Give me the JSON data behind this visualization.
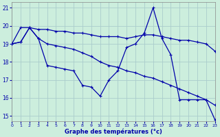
{
  "xlabel": "Graphe des températures (°c)",
  "bg_color": "#cceedd",
  "grid_color": "#aacccc",
  "line_color": "#0000aa",
  "xlim": [
    0,
    23
  ],
  "ylim": [
    14.7,
    21.3
  ],
  "yticks": [
    15,
    16,
    17,
    18,
    19,
    20,
    21
  ],
  "xticks": [
    0,
    1,
    2,
    3,
    4,
    5,
    6,
    7,
    8,
    9,
    10,
    11,
    12,
    13,
    14,
    15,
    16,
    17,
    18,
    19,
    20,
    21,
    22,
    23
  ],
  "lineA_x": [
    0,
    1,
    2,
    3,
    4,
    5,
    6,
    7,
    8,
    9,
    10,
    11,
    12,
    13,
    14,
    15,
    16,
    17,
    18,
    19,
    20,
    21,
    22,
    23
  ],
  "lineA_y": [
    19.0,
    19.9,
    19.9,
    19.8,
    19.8,
    19.7,
    19.7,
    19.6,
    19.6,
    19.5,
    19.4,
    19.4,
    19.4,
    19.3,
    19.4,
    19.5,
    19.5,
    19.4,
    19.3,
    19.2,
    19.2,
    19.1,
    19.0,
    18.6
  ],
  "lineB_x": [
    0,
    1,
    2,
    3,
    4,
    5,
    6,
    7,
    8,
    9,
    10,
    11,
    12,
    13,
    14,
    15,
    16,
    17,
    18,
    19,
    20,
    21,
    22,
    23
  ],
  "lineB_y": [
    19.0,
    19.1,
    19.9,
    19.3,
    17.8,
    17.7,
    17.6,
    17.5,
    16.7,
    16.6,
    16.1,
    17.0,
    17.5,
    18.8,
    19.0,
    19.6,
    21.0,
    19.3,
    18.4,
    15.9,
    15.9,
    15.9,
    15.9,
    14.8
  ],
  "lineC_x": [
    0,
    1,
    2,
    3,
    4,
    5,
    6,
    7,
    8,
    9,
    10,
    11,
    12,
    13,
    14,
    15,
    16,
    17,
    18,
    19,
    20,
    21,
    22,
    23
  ],
  "lineC_y": [
    19.0,
    19.1,
    19.9,
    19.3,
    19.0,
    18.9,
    18.8,
    18.7,
    18.5,
    18.3,
    18.0,
    17.8,
    17.7,
    17.5,
    17.4,
    17.2,
    17.1,
    16.9,
    16.7,
    16.5,
    16.3,
    16.1,
    15.9,
    15.6
  ]
}
